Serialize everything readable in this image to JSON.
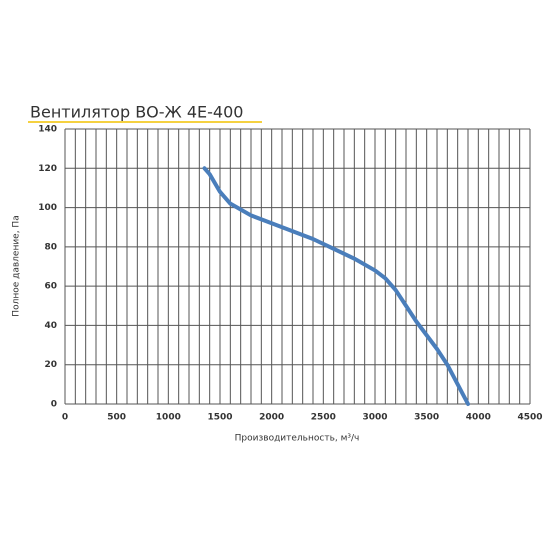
{
  "chart_data": {
    "type": "line",
    "title": "Вентилятор ВО-Ж 4Е-400",
    "x_label": "Производительность, м³/ч",
    "y_label": "Полное давление, Па",
    "series": [
      {
        "name": "ВО-Ж 4Е-400",
        "color": "#4a7ebb",
        "x": [
          1350,
          1400,
          1500,
          1600,
          1700,
          1800,
          2000,
          2200,
          2400,
          2600,
          2800,
          3000,
          3100,
          3200,
          3300,
          3400,
          3500,
          3600,
          3700,
          3800,
          3850,
          3900
        ],
        "values": [
          120,
          117,
          108,
          102,
          99,
          96,
          92,
          88,
          84,
          79,
          74,
          68,
          64,
          58,
          50,
          42,
          35,
          28,
          20,
          10,
          5,
          0
        ]
      }
    ],
    "xlim": [
      0,
      4500
    ],
    "xticks": [
      0,
      500,
      1000,
      1500,
      2000,
      2500,
      3000,
      3500,
      4000,
      4500
    ],
    "xgrid": [
      0,
      100,
      200,
      300,
      400,
      500,
      600,
      700,
      800,
      900,
      1000,
      1100,
      1200,
      1300,
      1400,
      1500,
      1600,
      1700,
      1800,
      1900,
      2000,
      2100,
      2200,
      2300,
      2400,
      2500,
      2600,
      2700,
      2800,
      2900,
      3000,
      3100,
      3200,
      3300,
      3400,
      3500,
      3600,
      3700,
      3800,
      3900,
      4000,
      4100,
      4200,
      4300,
      4400,
      4500
    ],
    "ylim": [
      0,
      140
    ],
    "yticks": [
      0,
      20,
      40,
      60,
      80,
      100,
      120,
      140
    ],
    "grid": true
  }
}
